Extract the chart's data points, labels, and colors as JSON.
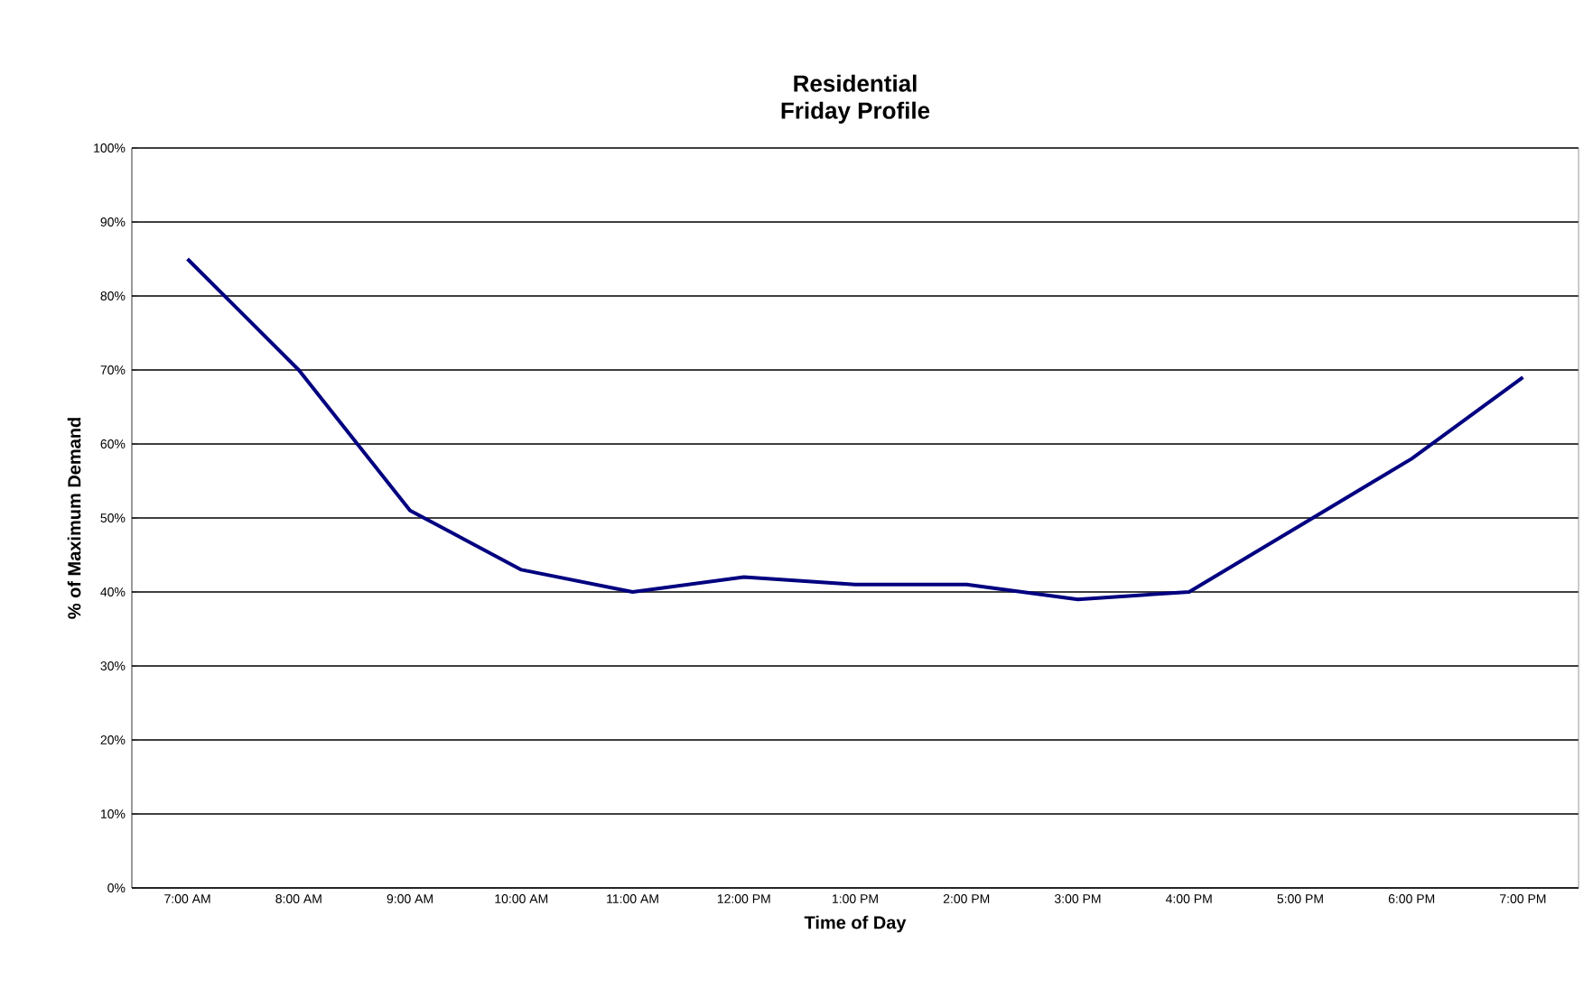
{
  "chart_data": {
    "type": "line",
    "title": "Residential",
    "subtitle": "Friday Profile",
    "xlabel": "Time of Day",
    "ylabel": "% of Maximum Demand",
    "categories": [
      "7:00 AM",
      "8:00 AM",
      "9:00 AM",
      "10:00 AM",
      "11:00 AM",
      "12:00 PM",
      "1:00 PM",
      "2:00 PM",
      "3:00 PM",
      "4:00 PM",
      "5:00 PM",
      "6:00 PM",
      "7:00 PM"
    ],
    "series": [
      {
        "color": "#000080",
        "values": [
          85,
          70,
          51,
          43,
          40,
          42,
          41,
          41,
          39,
          40,
          49,
          58,
          69
        ]
      }
    ],
    "ylim": [
      0,
      100
    ],
    "yticks": [
      {
        "value": 0,
        "label": "0%"
      },
      {
        "value": 10,
        "label": "10%"
      },
      {
        "value": 20,
        "label": "20%"
      },
      {
        "value": 30,
        "label": "30%"
      },
      {
        "value": 40,
        "label": "40%"
      },
      {
        "value": 50,
        "label": "50%"
      },
      {
        "value": 60,
        "label": "60%"
      },
      {
        "value": 70,
        "label": "70%"
      },
      {
        "value": 80,
        "label": "80%"
      },
      {
        "value": 90,
        "label": "90%"
      },
      {
        "value": 100,
        "label": "100%"
      }
    ],
    "grid": "y",
    "marker": "none",
    "line_style": "solid"
  }
}
